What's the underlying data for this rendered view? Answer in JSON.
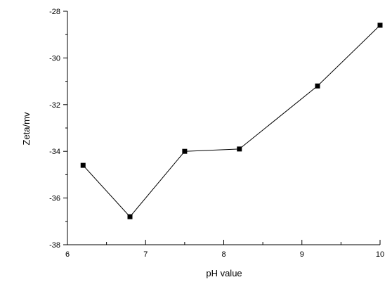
{
  "chart_data": {
    "type": "line",
    "title": "",
    "xlabel": "pH value",
    "ylabel": "Zeta/mv",
    "xlim": [
      6,
      10
    ],
    "ylim": [
      -38,
      -28
    ],
    "xticks": [
      "6",
      "7",
      "8",
      "9",
      "10"
    ],
    "yticks": [
      "-28",
      "-30",
      "-32",
      "-34",
      "-36",
      "-38"
    ],
    "grid": false,
    "series": [
      {
        "x": [
          6.2,
          6.8,
          7.5,
          8.2,
          9.2,
          10.0
        ],
        "y": [
          -34.6,
          -36.8,
          -34.0,
          -33.9,
          -31.2,
          -28.6
        ],
        "marker": "square",
        "color": "#000000"
      }
    ]
  }
}
